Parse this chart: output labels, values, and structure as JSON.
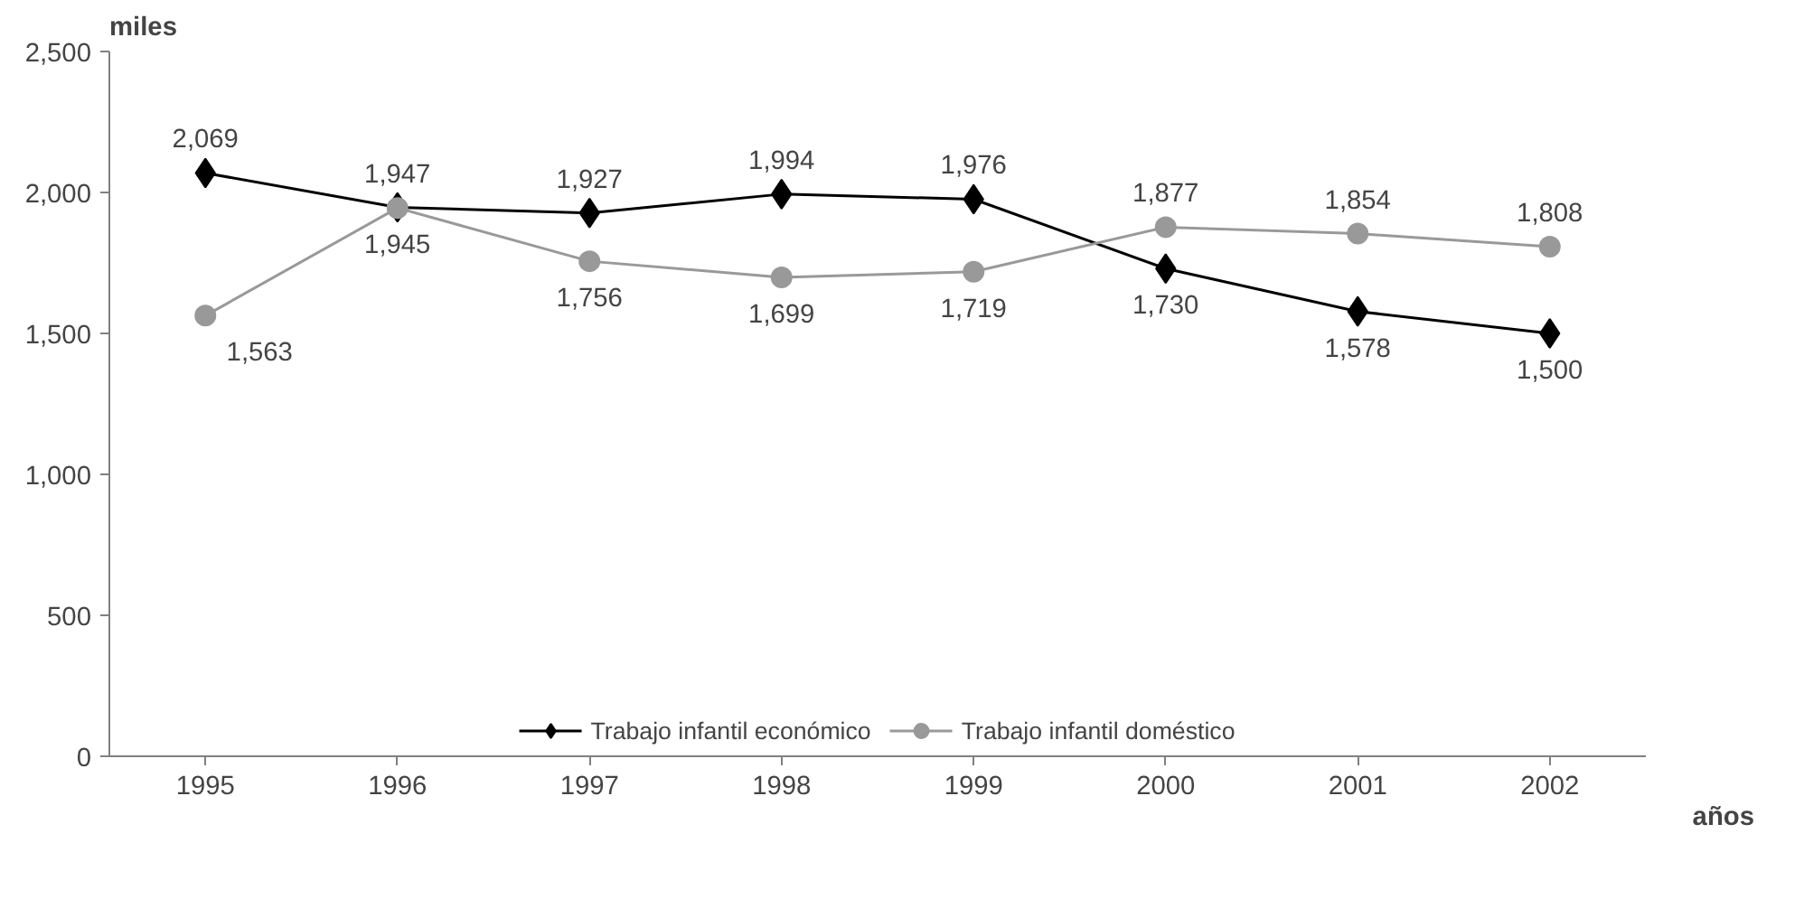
{
  "chart_data": {
    "type": "line",
    "xlabel": "años",
    "ylabel": "miles",
    "categories": [
      "1995",
      "1996",
      "1997",
      "1998",
      "1999",
      "2000",
      "2001",
      "2002"
    ],
    "ylim": [
      0,
      2500
    ],
    "yticks": [
      0,
      {
        "value": 500,
        "label": "500"
      },
      {
        "value": 1000,
        "label": "1,000"
      },
      {
        "value": 1500,
        "label": "1,500"
      },
      {
        "value": 2000,
        "label": "2,000"
      },
      {
        "value": 2500,
        "label": "2,500"
      }
    ],
    "grid": false,
    "legend": "bottom",
    "line_style": "solid",
    "series": [
      {
        "name": "Trabajo infantil económico",
        "color": "#000000",
        "marker": "diamond",
        "values": [
          2069,
          1947,
          1927,
          1994,
          1976,
          1730,
          1578,
          1500
        ],
        "value_labels": [
          "2,069",
          "1,947",
          "1,927",
          "1,994",
          "1,976",
          "1,730",
          "1,578",
          "1,500"
        ]
      },
      {
        "name": "Trabajo infantil doméstico",
        "color": "#999999",
        "marker": "circle",
        "values": [
          1563,
          1945,
          1756,
          1699,
          1719,
          1877,
          1854,
          1808
        ],
        "value_labels": [
          "1,563",
          "1,945",
          "1,756",
          "1,699",
          "1,719",
          "1,877",
          "1,854",
          "1,808"
        ]
      }
    ]
  }
}
